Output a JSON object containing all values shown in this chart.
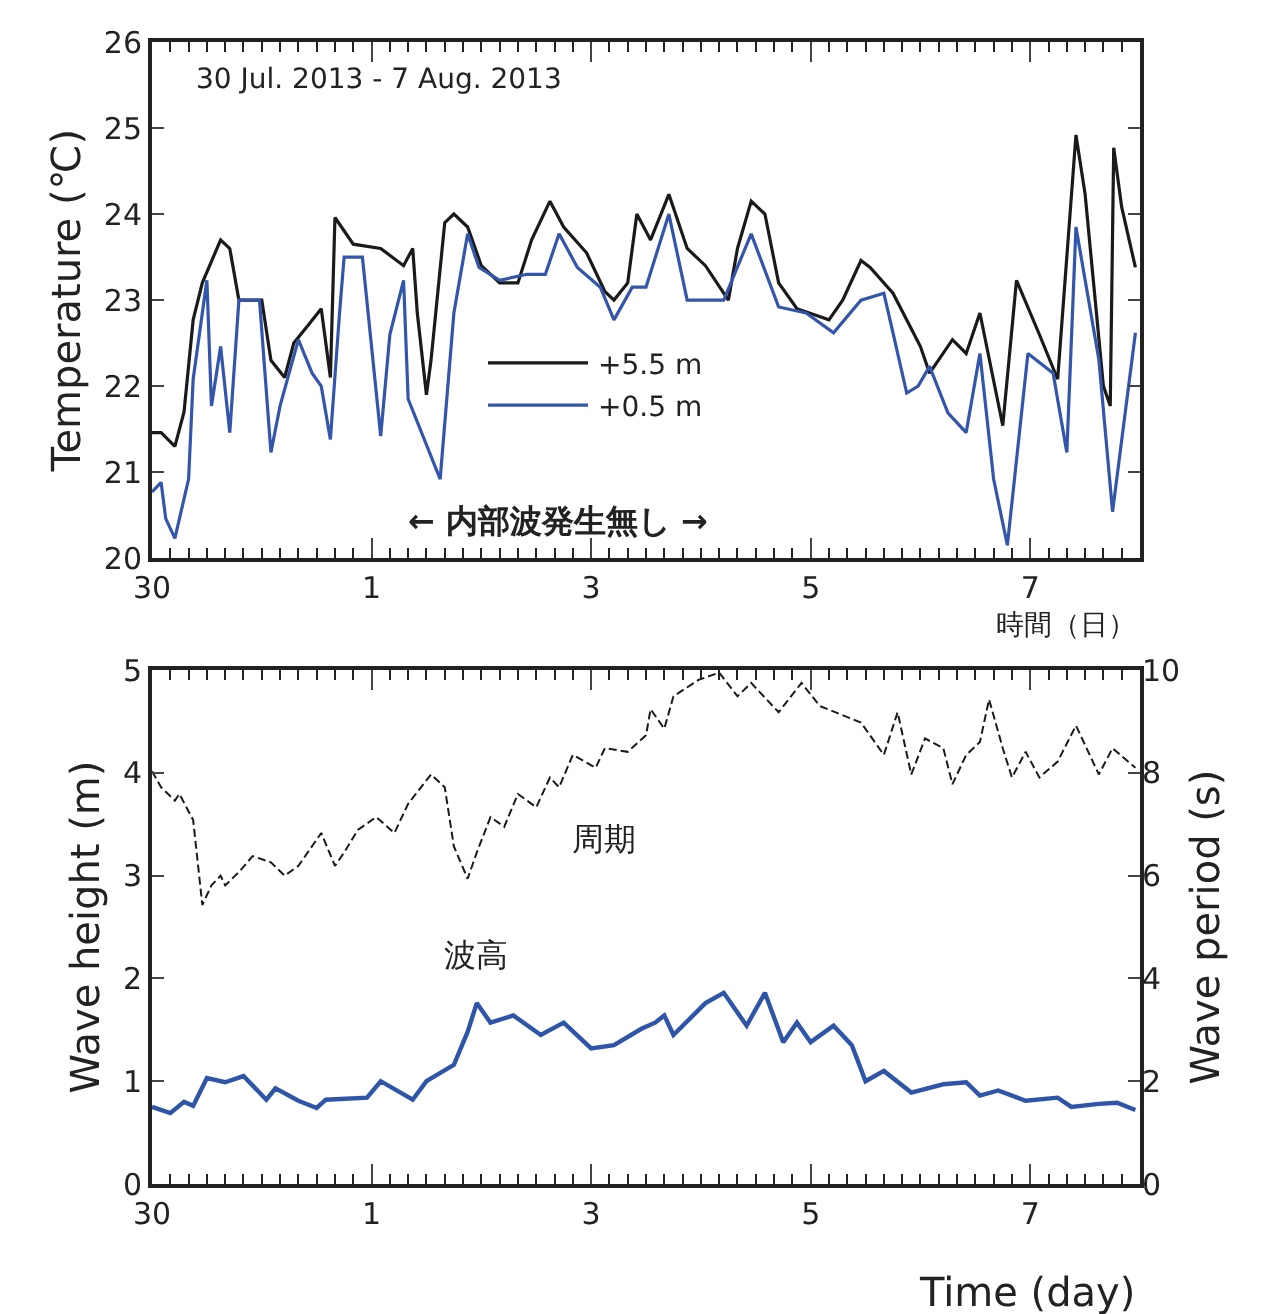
{
  "chart_data": [
    {
      "type": "line",
      "xlabel": "時間（日）",
      "ylabel": "Temperature (℃)",
      "annotations": [
        "30 Jul. 2013 - 7 Aug. 2013",
        "← 内部波発生無し →"
      ],
      "xlim": [
        "2013-07-30",
        "2013-08-08"
      ],
      "xticks": [
        {
          "value": "2013-07-30",
          "label": "30"
        },
        {
          "value": "2013-08-01",
          "label": "1"
        },
        {
          "value": "2013-08-03",
          "label": "3"
        },
        {
          "value": "2013-08-05",
          "label": "5"
        },
        {
          "value": "2013-08-07",
          "label": "7"
        }
      ],
      "ylim": [
        20,
        26
      ],
      "yticks": [
        20,
        21,
        22,
        23,
        24,
        25,
        26
      ],
      "legend": "center",
      "line_style": "solid",
      "marker": "none",
      "series": [
        {
          "name": "+5.5 m",
          "color": "#1a1a1a",
          "x": [
            "2013-07-30T00:00",
            "2013-07-30T02:00",
            "2013-07-30T05:00",
            "2013-07-30T07:00",
            "2013-07-30T09:00",
            "2013-07-30T11:00",
            "2013-07-30T15:00",
            "2013-07-30T17:00",
            "2013-07-30T19:00",
            "2013-07-31T00:00",
            "2013-07-31T02:00",
            "2013-07-31T05:00",
            "2013-07-31T07:00",
            "2013-07-31T10:00",
            "2013-07-31T13:00",
            "2013-07-31T15:00",
            "2013-07-31T16:00",
            "2013-07-31T20:00",
            "2013-08-01T02:00",
            "2013-08-01T07:00",
            "2013-08-01T09:00",
            "2013-08-01T10:00",
            "2013-08-01T12:00",
            "2013-08-01T13:00",
            "2013-08-01T16:00",
            "2013-08-01T18:00",
            "2013-08-01T21:00",
            "2013-08-02T00:00",
            "2013-08-02T04:00",
            "2013-08-02T08:00",
            "2013-08-02T11:00",
            "2013-08-02T15:00",
            "2013-08-02T18:00",
            "2013-08-02T23:00",
            "2013-08-03T03:00",
            "2013-08-03T05:00",
            "2013-08-03T08:00",
            "2013-08-03T10:00",
            "2013-08-03T13:00",
            "2013-08-03T17:00",
            "2013-08-03T21:00",
            "2013-08-04T01:00",
            "2013-08-04T06:00",
            "2013-08-04T08:00",
            "2013-08-04T11:00",
            "2013-08-04T14:00",
            "2013-08-04T17:00",
            "2013-08-04T21:00",
            "2013-08-05T04:00",
            "2013-08-05T07:00",
            "2013-08-05T11:00",
            "2013-08-05T13:00",
            "2013-08-05T18:00",
            "2013-08-06T00:00",
            "2013-08-06T02:00",
            "2013-08-06T07:00",
            "2013-08-06T10:00",
            "2013-08-06T13:00",
            "2013-08-06T18:00",
            "2013-08-06T21:00",
            "2013-08-07T02:00",
            "2013-08-07T06:00",
            "2013-08-07T10:00",
            "2013-08-07T12:00",
            "2013-08-07T16:00",
            "2013-08-07T17:30",
            "2013-08-07T18:15",
            "2013-08-07T20:00",
            "2013-08-07T23:00"
          ],
          "values": [
            21.46,
            21.46,
            21.3,
            21.7,
            22.77,
            23.2,
            23.7,
            23.6,
            23.0,
            23.0,
            22.3,
            22.1,
            22.5,
            22.7,
            22.9,
            22.1,
            23.96,
            23.65,
            23.6,
            23.4,
            23.6,
            22.85,
            21.9,
            22.3,
            23.9,
            24.0,
            23.85,
            23.4,
            23.2,
            23.2,
            23.7,
            24.15,
            23.85,
            23.55,
            23.1,
            23.0,
            23.2,
            24.0,
            23.7,
            24.23,
            23.6,
            23.4,
            23.0,
            23.6,
            24.15,
            24.0,
            23.2,
            22.9,
            22.77,
            23.0,
            23.46,
            23.38,
            23.08,
            22.46,
            22.15,
            22.54,
            22.38,
            22.85,
            21.54,
            23.23,
            22.6,
            22.08,
            24.92,
            24.23,
            22.0,
            21.77,
            24.77,
            24.08,
            23.38
          ]
        },
        {
          "name": "+0.5 m",
          "color": "#3355aa",
          "x": [
            "2013-07-30T00:00",
            "2013-07-30T02:00",
            "2013-07-30T03:00",
            "2013-07-30T05:00",
            "2013-07-30T08:00",
            "2013-07-30T09:00",
            "2013-07-30T12:00",
            "2013-07-30T13:00",
            "2013-07-30T15:00",
            "2013-07-30T17:00",
            "2013-07-30T19:00",
            "2013-07-30T23:30",
            "2013-07-31T02:00",
            "2013-07-31T04:00",
            "2013-07-31T08:00",
            "2013-07-31T11:00",
            "2013-07-31T13:00",
            "2013-07-31T15:00",
            "2013-07-31T17:00",
            "2013-07-31T18:00",
            "2013-07-31T22:00",
            "2013-08-01T02:00",
            "2013-08-01T04:00",
            "2013-08-01T07:00",
            "2013-08-01T08:00",
            "2013-08-01T15:00",
            "2013-08-01T18:00",
            "2013-08-01T21:00",
            "2013-08-01T23:30",
            "2013-08-02T04:00",
            "2013-08-02T10:00",
            "2013-08-02T14:00",
            "2013-08-02T17:00",
            "2013-08-02T21:00",
            "2013-08-03T02:00",
            "2013-08-03T05:00",
            "2013-08-03T09:00",
            "2013-08-03T12:00",
            "2013-08-03T17:00",
            "2013-08-03T21:00",
            "2013-08-04T05:00",
            "2013-08-04T11:00",
            "2013-08-04T17:00",
            "2013-08-04T23:00",
            "2013-08-05T05:00",
            "2013-08-05T11:00",
            "2013-08-05T16:00",
            "2013-08-05T18:00",
            "2013-08-05T21:00",
            "2013-08-05T23:30",
            "2013-08-06T02:00",
            "2013-08-06T06:00",
            "2013-08-06T10:00",
            "2013-08-06T13:00",
            "2013-08-06T16:00",
            "2013-08-06T19:00",
            "2013-08-06T23:30",
            "2013-08-07T05:00",
            "2013-08-07T08:00",
            "2013-08-07T10:00",
            "2013-08-07T15:00",
            "2013-08-07T18:00",
            "2013-08-07T23:00"
          ],
          "values": [
            20.77,
            20.88,
            20.46,
            20.23,
            20.92,
            22.08,
            23.23,
            21.77,
            22.46,
            21.46,
            23.0,
            23.0,
            21.23,
            21.77,
            22.54,
            22.15,
            22.0,
            21.38,
            22.85,
            23.5,
            23.5,
            21.42,
            22.6,
            23.23,
            21.85,
            20.92,
            22.85,
            23.77,
            23.38,
            23.23,
            23.3,
            23.3,
            23.77,
            23.38,
            23.15,
            22.77,
            23.15,
            23.15,
            24.0,
            23.0,
            23.0,
            23.77,
            22.92,
            22.85,
            22.62,
            23.0,
            23.08,
            22.62,
            21.92,
            22.0,
            22.23,
            21.69,
            21.46,
            22.38,
            20.92,
            20.15,
            22.38,
            22.15,
            21.23,
            23.85,
            22.31,
            20.54,
            22.62
          ]
        }
      ]
    },
    {
      "type": "line",
      "xlabel": "Time (day)",
      "ylabel": "Wave height (m)",
      "y2label": "Wave period (s)",
      "xlim": [
        "2013-07-30",
        "2013-08-08"
      ],
      "xticks": [
        {
          "value": "2013-07-30",
          "label": "30"
        },
        {
          "value": "2013-08-01",
          "label": "1"
        },
        {
          "value": "2013-08-03",
          "label": "3"
        },
        {
          "value": "2013-08-05",
          "label": "5"
        },
        {
          "value": "2013-08-07",
          "label": "7"
        }
      ],
      "ylim": [
        0,
        5
      ],
      "yticks": [
        0,
        1,
        2,
        3,
        4,
        5
      ],
      "y2lim": [
        0,
        10
      ],
      "y2ticks": [
        0,
        2,
        4,
        6,
        8,
        10
      ],
      "legend": false,
      "marker": "none",
      "series": [
        {
          "name": "波高",
          "color": "#2f55a8",
          "line_style": "solid",
          "x": [
            "2013-07-30T00:00",
            "2013-07-30T04:00",
            "2013-07-30T07:00",
            "2013-07-30T09:00",
            "2013-07-30T12:00",
            "2013-07-30T16:00",
            "2013-07-30T20:00",
            "2013-07-31T01:00",
            "2013-07-31T03:00",
            "2013-07-31T08:00",
            "2013-07-31T12:00",
            "2013-07-31T14:00",
            "2013-07-31T23:00",
            "2013-08-01T02:00",
            "2013-08-01T09:00",
            "2013-08-01T12:00",
            "2013-08-01T18:00",
            "2013-08-01T21:00",
            "2013-08-01T23:00",
            "2013-08-02T02:00",
            "2013-08-02T07:00",
            "2013-08-02T13:00",
            "2013-08-02T18:00",
            "2013-08-03T00:00",
            "2013-08-03T05:00",
            "2013-08-03T11:00",
            "2013-08-03T14:00",
            "2013-08-03T16:00",
            "2013-08-03T18:00",
            "2013-08-04T01:00",
            "2013-08-04T05:00",
            "2013-08-04T10:00",
            "2013-08-04T14:00",
            "2013-08-04T18:00",
            "2013-08-04T21:00",
            "2013-08-05T00:00",
            "2013-08-05T05:00",
            "2013-08-05T09:00",
            "2013-08-05T12:00",
            "2013-08-05T16:00",
            "2013-08-05T22:00",
            "2013-08-06T05:00",
            "2013-08-06T10:00",
            "2013-08-06T13:00",
            "2013-08-06T17:00",
            "2013-08-06T23:00",
            "2013-08-07T06:00",
            "2013-08-07T09:00",
            "2013-08-07T15:00",
            "2013-08-07T19:00",
            "2013-08-07T23:00"
          ],
          "values": [
            0.75,
            0.69,
            0.8,
            0.76,
            1.03,
            0.99,
            1.05,
            0.82,
            0.93,
            0.81,
            0.74,
            0.82,
            0.84,
            1.0,
            0.82,
            1.0,
            1.16,
            1.48,
            1.76,
            1.57,
            1.64,
            1.45,
            1.57,
            1.32,
            1.35,
            1.51,
            1.57,
            1.64,
            1.45,
            1.76,
            1.86,
            1.54,
            1.86,
            1.38,
            1.57,
            1.38,
            1.54,
            1.35,
            1.0,
            1.1,
            0.89,
            0.97,
            0.99,
            0.86,
            0.91,
            0.81,
            0.84,
            0.75,
            0.78,
            0.79,
            0.72
          ]
        },
        {
          "name": "周期",
          "color": "#1a1a1a",
          "line_style": "dashed",
          "axis": "y2",
          "x": [
            "2013-07-30T00:00",
            "2013-07-30T02:00",
            "2013-07-30T05:00",
            "2013-07-30T06:00",
            "2013-07-30T09:00",
            "2013-07-30T11:00",
            "2013-07-30T13:00",
            "2013-07-30T15:00",
            "2013-07-30T16:00",
            "2013-07-30T19:00",
            "2013-07-30T22:00",
            "2013-07-31T02:00",
            "2013-07-31T05:00",
            "2013-07-31T08:00",
            "2013-07-31T13:00",
            "2013-07-31T16:00",
            "2013-07-31T18:00",
            "2013-07-31T21:00",
            "2013-08-01T01:00",
            "2013-08-01T05:00",
            "2013-08-01T08:00",
            "2013-08-01T13:00",
            "2013-08-01T16:00",
            "2013-08-01T18:00",
            "2013-08-01T21:00",
            "2013-08-01T23:00",
            "2013-08-02T02:00",
            "2013-08-02T05:00",
            "2013-08-02T08:00",
            "2013-08-02T12:00",
            "2013-08-02T15:00",
            "2013-08-02T17:00",
            "2013-08-02T20:00",
            "2013-08-03T01:00",
            "2013-08-03T03:00",
            "2013-08-03T08:00",
            "2013-08-03T12:00",
            "2013-08-03T13:00",
            "2013-08-03T16:00",
            "2013-08-03T18:00",
            "2013-08-03T23:30",
            "2013-08-04T04:00",
            "2013-08-04T08:00",
            "2013-08-04T11:00",
            "2013-08-04T17:00",
            "2013-08-04T22:00",
            "2013-08-05T02:00",
            "2013-08-05T11:00",
            "2013-08-05T16:00",
            "2013-08-05T19:00",
            "2013-08-05T22:00",
            "2013-08-06T01:00",
            "2013-08-06T05:00",
            "2013-08-06T07:00",
            "2013-08-06T10:00",
            "2013-08-06T13:00",
            "2013-08-06T15:00",
            "2013-08-06T18:00",
            "2013-08-06T20:00",
            "2013-08-06T23:00",
            "2013-08-07T02:00",
            "2013-08-07T06:00",
            "2013-08-07T10:00",
            "2013-08-07T15:00",
            "2013-08-07T18:00",
            "2013-08-07T23:00"
          ],
          "values": [
            8.03,
            7.72,
            7.46,
            7.59,
            7.08,
            5.43,
            5.81,
            6.0,
            5.81,
            6.07,
            6.38,
            6.26,
            6.0,
            6.19,
            6.83,
            6.19,
            6.45,
            6.89,
            7.14,
            6.83,
            7.4,
            7.97,
            7.72,
            6.57,
            5.94,
            6.45,
            7.14,
            6.95,
            7.59,
            7.33,
            7.91,
            7.72,
            8.35,
            8.1,
            8.48,
            8.41,
            8.73,
            9.24,
            8.86,
            9.49,
            9.81,
            9.95,
            9.49,
            9.75,
            9.18,
            9.75,
            9.3,
            8.98,
            8.35,
            9.18,
            7.97,
            8.67,
            8.48,
            7.78,
            8.35,
            8.6,
            9.43,
            8.48,
            7.91,
            8.41,
            7.91,
            8.22,
            8.92,
            7.97,
            8.48,
            8.1
          ]
        }
      ]
    }
  ]
}
